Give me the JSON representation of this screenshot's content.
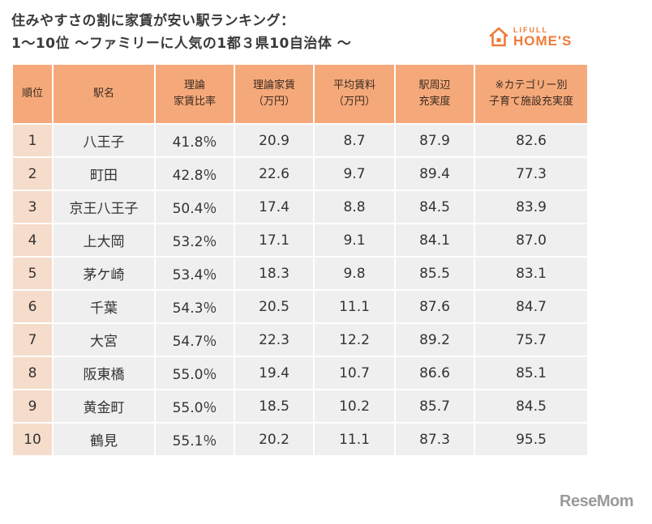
{
  "title": {
    "line1": "住みやすさの割に家賃が安い駅ランキング：",
    "line2": "1～10位 ～ファミリーに人気の1都３県10自治体 ～"
  },
  "logo": {
    "top_text": "LIFULL",
    "bottom_text": "HOME'S",
    "icon": "house-icon",
    "color": "#ee7c3a"
  },
  "table": {
    "headers": [
      {
        "line1": "順位",
        "line2": ""
      },
      {
        "line1": "駅名",
        "line2": ""
      },
      {
        "line1": "理論",
        "line2": "家賃比率"
      },
      {
        "line1": "理論家賃",
        "line2": "（万円）"
      },
      {
        "line1": "平均賃料",
        "line2": "（万円）"
      },
      {
        "line1": "駅周辺",
        "line2": "充実度"
      },
      {
        "line1": "※カテゴリー別",
        "line2": "子育て施設充実度"
      }
    ],
    "rows": [
      {
        "rank": "1",
        "station": "八王子",
        "ratio": "41.8％",
        "theory": "20.9",
        "avg": "8.7",
        "around": "87.9",
        "child": "82.6"
      },
      {
        "rank": "2",
        "station": "町田",
        "ratio": "42.8％",
        "theory": "22.6",
        "avg": "9.7",
        "around": "89.4",
        "child": "77.3"
      },
      {
        "rank": "3",
        "station": "京王八王子",
        "ratio": "50.4％",
        "theory": "17.4",
        "avg": "8.8",
        "around": "84.5",
        "child": "83.9"
      },
      {
        "rank": "4",
        "station": "上大岡",
        "ratio": "53.2％",
        "theory": "17.1",
        "avg": "9.1",
        "around": "84.1",
        "child": "87.0"
      },
      {
        "rank": "5",
        "station": "茅ケ崎",
        "ratio": "53.4％",
        "theory": "18.3",
        "avg": "9.8",
        "around": "85.5",
        "child": "83.1"
      },
      {
        "rank": "6",
        "station": "千葉",
        "ratio": "54.3％",
        "theory": "20.5",
        "avg": "11.1",
        "around": "87.6",
        "child": "84.7"
      },
      {
        "rank": "7",
        "station": "大宮",
        "ratio": "54.7％",
        "theory": "22.3",
        "avg": "12.2",
        "around": "89.2",
        "child": "75.7"
      },
      {
        "rank": "8",
        "station": "阪東橋",
        "ratio": "55.0％",
        "theory": "19.4",
        "avg": "10.7",
        "around": "86.6",
        "child": "85.1"
      },
      {
        "rank": "9",
        "station": "黄金町",
        "ratio": "55.0％",
        "theory": "18.5",
        "avg": "10.2",
        "around": "85.7",
        "child": "84.5"
      },
      {
        "rank": "10",
        "station": "鶴見",
        "ratio": "55.1％",
        "theory": "20.2",
        "avg": "11.1",
        "around": "87.3",
        "child": "95.5"
      }
    ]
  },
  "watermark": "ReseMom",
  "colors": {
    "header_bg": "#f5a97a",
    "rank_bg": "#f6dccb",
    "cell_bg": "#efefef",
    "accent": "#ee7c3a"
  }
}
